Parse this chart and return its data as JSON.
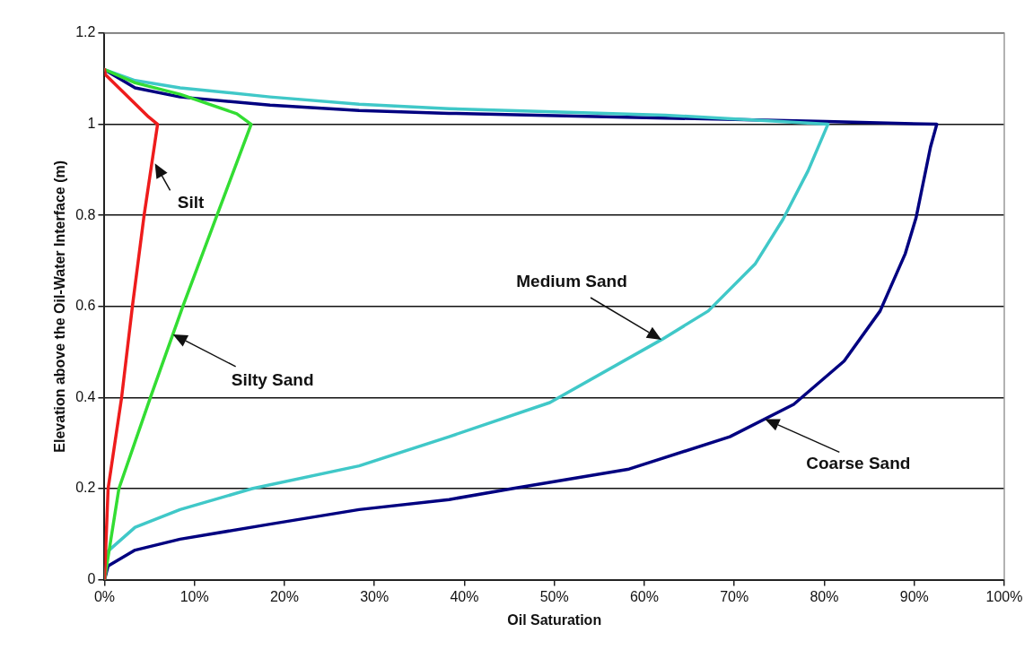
{
  "chart_data": {
    "type": "line",
    "xlabel": "Oil Saturation",
    "ylabel": "Elevation above the Oil-Water Interface (m)",
    "xlim": [
      0,
      100
    ],
    "ylim": [
      0,
      1.2
    ],
    "xticks": [
      {
        "value": 0,
        "label": "0%"
      },
      {
        "value": 10,
        "label": "10%"
      },
      {
        "value": 20,
        "label": "20%"
      },
      {
        "value": 30,
        "label": "30%"
      },
      {
        "value": 40,
        "label": "40%"
      },
      {
        "value": 50,
        "label": "50%"
      },
      {
        "value": 60,
        "label": "60%"
      },
      {
        "value": 70,
        "label": "70%"
      },
      {
        "value": 80,
        "label": "80%"
      },
      {
        "value": 90,
        "label": "90%"
      },
      {
        "value": 100,
        "label": "100%"
      }
    ],
    "yticks": [
      0,
      0.2,
      0.4,
      0.6,
      0.8,
      1,
      1.2
    ],
    "grid": "y",
    "legend": false,
    "series": [
      {
        "color": "#ee1c1c",
        "x": [
          0,
          0.4,
          1.9,
          3.1,
          4.4,
          5.9,
          4.9,
          0.1,
          0
        ],
        "values": [
          0,
          0.2,
          0.4,
          0.6,
          0.8,
          1.0,
          1.016,
          1.109,
          1.12
        ]
      },
      {
        "color": "#33dd33",
        "x": [
          0,
          1.6,
          5.1,
          8.7,
          12.5,
          16.3,
          14.7,
          8.4,
          3.4,
          0
        ],
        "values": [
          0,
          0.2,
          0.4,
          0.6,
          0.8,
          1.0,
          1.023,
          1.066,
          1.091,
          1.12
        ]
      },
      {
        "color": "#40c8c8",
        "x": [
          0,
          0.4,
          3.4,
          8.4,
          16.4,
          28.3,
          38.3,
          49.5,
          61.9,
          67.1,
          72.3,
          75.4,
          78.2,
          80.4,
          62.3,
          38.3,
          28.3,
          18.4,
          8.4,
          3.4,
          0
        ],
        "values": [
          0,
          0.063,
          0.115,
          0.154,
          0.2,
          0.25,
          0.314,
          0.389,
          0.527,
          0.59,
          0.693,
          0.791,
          0.898,
          1.0,
          1.02,
          1.034,
          1.044,
          1.06,
          1.08,
          1.096,
          1.12
        ]
      },
      {
        "color": "#000080",
        "x": [
          0,
          0.4,
          3.4,
          8.4,
          18.4,
          28.3,
          38.3,
          45.3,
          58.3,
          69.5,
          76.6,
          82.2,
          86.2,
          89,
          90.2,
          91.8,
          92.5,
          80.2,
          38.3,
          28.3,
          18.4,
          8.4,
          3.4,
          0
        ],
        "values": [
          0,
          0.03,
          0.065,
          0.089,
          0.122,
          0.154,
          0.176,
          0.2,
          0.243,
          0.314,
          0.385,
          0.48,
          0.59,
          0.716,
          0.795,
          0.95,
          1.0,
          1.006,
          1.024,
          1.03,
          1.042,
          1.06,
          1.08,
          1.12
        ]
      }
    ],
    "annotations": [
      {
        "text": "Silt",
        "x": 5.6,
        "y": 0.914
      },
      "Silty Sand",
      "Medium Sand",
      "Coarse Sand"
    ]
  }
}
